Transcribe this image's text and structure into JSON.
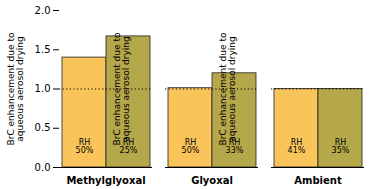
{
  "chart_data": {
    "type": "bar",
    "ylabel": "BrC enhancement due to\naqueous aerosol drying",
    "categories": [
      "Methylglyoxal",
      "Glyoxal",
      "Ambient"
    ],
    "series": [
      {
        "color": "#F9C45A",
        "values": [
          1.4,
          1.01,
          1.0
        ],
        "labels": [
          "RH\n50%",
          "RH\n50%",
          "RH\n41%"
        ]
      },
      {
        "color": "#B5A84A",
        "values": [
          1.67,
          1.2,
          1.0
        ],
        "labels": [
          "RH\n25%",
          "RH\n33%",
          "RH\n35%"
        ]
      }
    ],
    "edge_color": "#222222",
    "reference_lines": [
      {
        "y": 1.0,
        "line_style": "dotted"
      }
    ],
    "ylim": [
      0.0,
      2.0
    ],
    "yticks": [
      {
        "value": 0.0,
        "label": "0.0"
      },
      0.5,
      {
        "value": 1.0,
        "label": "1.0"
      },
      1.5,
      {
        "value": 2.0,
        "label": "2.0"
      }
    ],
    "grid": false,
    "background_color": "#ffffff"
  }
}
